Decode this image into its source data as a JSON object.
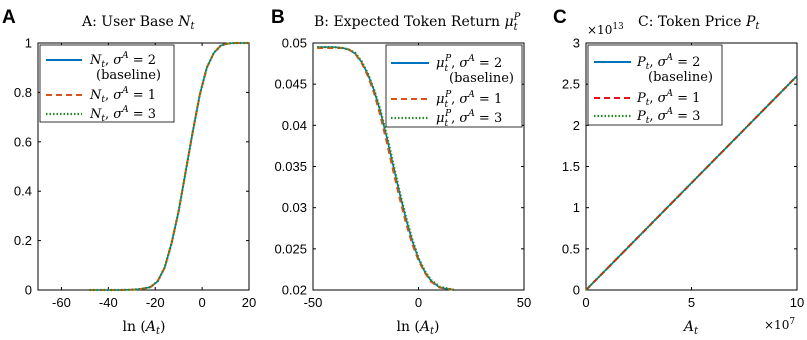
{
  "chart_data": [
    {
      "panel": "A",
      "type": "line",
      "title": "A: User Base N_t",
      "xlabel": "ln (A_t)",
      "ylabel": "",
      "xlim": [
        -70,
        20
      ],
      "ylim": [
        0,
        1
      ],
      "xticks": [
        -60,
        -40,
        -20,
        0,
        20
      ],
      "yticks": [
        0,
        0.2,
        0.4,
        0.6,
        0.8,
        1
      ],
      "xtick_labels": [
        "-60",
        "-40",
        "-20",
        "0",
        "20"
      ],
      "ytick_labels": [
        "0",
        "0.2",
        "0.4",
        "0.6",
        "0.8",
        "1"
      ],
      "legend_position": "top-left",
      "series": [
        {
          "name": "N_t, σ^A = 2 (baseline)",
          "color": "#0072BD",
          "style": "solid",
          "x": [
            -48,
            -36,
            -30,
            -26,
            -22,
            -19,
            -16,
            -13,
            -10,
            -7,
            -4,
            -1,
            2,
            5,
            8,
            11,
            14,
            20
          ],
          "y": [
            0,
            0,
            0.001,
            0.004,
            0.012,
            0.035,
            0.09,
            0.19,
            0.32,
            0.48,
            0.64,
            0.79,
            0.9,
            0.96,
            0.99,
            0.998,
            1,
            1
          ]
        },
        {
          "name": "N_t, σ^A = 1",
          "color": "#D95319",
          "style": "dashed",
          "x": [
            -48,
            -36,
            -30,
            -26,
            -22,
            -19,
            -16,
            -13,
            -10,
            -7,
            -4,
            -1,
            2,
            5,
            8,
            11,
            14,
            20
          ],
          "y": [
            0,
            0,
            0.001,
            0.004,
            0.012,
            0.035,
            0.09,
            0.19,
            0.32,
            0.48,
            0.64,
            0.79,
            0.9,
            0.96,
            0.99,
            0.998,
            1,
            1
          ]
        },
        {
          "name": "N_t, σ^A = 3",
          "color": "#1E8C1E",
          "style": "dotted",
          "x": [
            -48,
            -36,
            -30,
            -26,
            -22,
            -19,
            -16,
            -13,
            -10,
            -7,
            -4,
            -1,
            2,
            5,
            8,
            11,
            14,
            20
          ],
          "y": [
            0,
            0,
            0.001,
            0.004,
            0.012,
            0.035,
            0.09,
            0.19,
            0.32,
            0.48,
            0.64,
            0.79,
            0.9,
            0.96,
            0.99,
            0.998,
            1,
            1
          ]
        }
      ]
    },
    {
      "panel": "B",
      "type": "line",
      "title": "B: Expected Token Return μ_t^P",
      "xlabel": "ln (A_t)",
      "ylabel": "",
      "xlim": [
        -50,
        50
      ],
      "ylim": [
        0.02,
        0.05
      ],
      "xticks": [
        -50,
        0,
        50
      ],
      "yticks": [
        0.02,
        0.025,
        0.03,
        0.035,
        0.04,
        0.045,
        0.05
      ],
      "xtick_labels": [
        "-50",
        "0",
        "50"
      ],
      "ytick_labels": [
        "0.02",
        "0.025",
        "0.03",
        "0.035",
        "0.04",
        "0.045",
        "0.05"
      ],
      "legend_position": "top-right",
      "series": [
        {
          "name": "μ_t^P, σ^A = 2 (baseline)",
          "color": "#0072BD",
          "style": "solid",
          "x": [
            -48,
            -40,
            -36,
            -33,
            -30,
            -27,
            -24,
            -21,
            -18,
            -15,
            -12,
            -9,
            -6,
            -3,
            0,
            3,
            6,
            10,
            17
          ],
          "y": [
            0.0495,
            0.0495,
            0.0494,
            0.0492,
            0.0487,
            0.0477,
            0.0462,
            0.0442,
            0.0416,
            0.0385,
            0.0351,
            0.0318,
            0.0287,
            0.026,
            0.0238,
            0.0222,
            0.0211,
            0.0203,
            0.02
          ]
        },
        {
          "name": "μ_t^P, σ^A = 1",
          "color": "#D95319",
          "style": "dashed",
          "x": [
            -48,
            -40,
            -36,
            -33,
            -30,
            -27,
            -24,
            -21,
            -18,
            -15,
            -12,
            -9,
            -6,
            -3,
            0,
            3,
            6,
            10,
            17
          ],
          "y": [
            0.0494,
            0.0494,
            0.0494,
            0.0492,
            0.0487,
            0.0476,
            0.046,
            0.0439,
            0.0411,
            0.0379,
            0.0345,
            0.0312,
            0.0282,
            0.0256,
            0.0236,
            0.0221,
            0.021,
            0.0203,
            0.02
          ]
        },
        {
          "name": "μ_t^P, σ^A = 3",
          "color": "#1E8C1E",
          "style": "dotted",
          "x": [
            -48,
            -40,
            -36,
            -33,
            -30,
            -27,
            -24,
            -21,
            -18,
            -15,
            -12,
            -9,
            -6,
            -3,
            0,
            3,
            6,
            10,
            17
          ],
          "y": [
            0.0495,
            0.0495,
            0.0494,
            0.0492,
            0.0488,
            0.0478,
            0.0463,
            0.0443,
            0.0418,
            0.0388,
            0.0354,
            0.032,
            0.0289,
            0.0262,
            0.0239,
            0.0223,
            0.0212,
            0.0204,
            0.02
          ]
        }
      ]
    },
    {
      "panel": "C",
      "type": "line",
      "title": "C: Token Price P_t",
      "xlabel": "A_t",
      "ylabel": "",
      "x_multiplier": "×10^7",
      "y_multiplier": "×10^13",
      "xlim": [
        0,
        10
      ],
      "ylim": [
        0,
        3
      ],
      "xticks": [
        0,
        5,
        10
      ],
      "yticks": [
        0,
        0.5,
        1,
        1.5,
        2,
        2.5,
        3
      ],
      "xtick_labels": [
        "0",
        "5",
        "10"
      ],
      "ytick_labels": [
        "0",
        "0.5",
        "1",
        "1.5",
        "2",
        "2.5",
        "3"
      ],
      "legend_position": "top-left",
      "series": [
        {
          "name": "P_t, σ^A = 2 (baseline)",
          "color": "#0072BD",
          "style": "solid",
          "x": [
            0,
            2,
            4,
            6,
            8,
            10
          ],
          "y": [
            0,
            0.52,
            1.04,
            1.56,
            2.08,
            2.6
          ]
        },
        {
          "name": "P_t, σ^A = 1",
          "color": "#E8111B",
          "style": "dashed",
          "x": [
            0,
            2,
            4,
            6,
            8,
            10
          ],
          "y": [
            0,
            0.52,
            1.04,
            1.56,
            2.08,
            2.6
          ]
        },
        {
          "name": "P_t, σ^A = 3",
          "color": "#1E8C1E",
          "style": "dotted",
          "x": [
            0,
            2,
            4,
            6,
            8,
            10
          ],
          "y": [
            0,
            0.52,
            1.04,
            1.56,
            2.08,
            2.6
          ]
        }
      ]
    }
  ],
  "panel_labels": [
    "A",
    "B",
    "C"
  ]
}
